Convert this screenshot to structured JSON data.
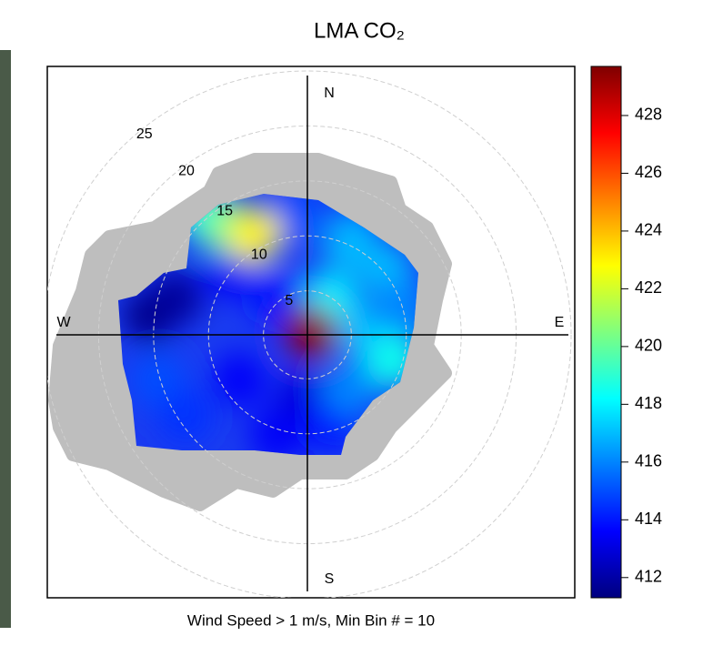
{
  "chart_data": {
    "type": "polar",
    "title": "LMA CO₂",
    "footer": "Wind Speed > 1 m/s, Min Bin # = 10",
    "directions": [
      "N",
      "E",
      "S",
      "W"
    ],
    "rlim": [
      1,
      25
    ],
    "rticks": [
      5,
      10,
      15,
      20,
      25
    ],
    "xlim": [
      -24,
      24
    ],
    "ylim": [
      -24,
      24
    ],
    "zlim": [
      411.3,
      429.7
    ],
    "zticks": [
      412,
      414,
      416,
      418,
      420,
      422,
      424,
      426,
      428
    ],
    "colorscale": [
      "#00007F",
      "#0000FF",
      "#007FFF",
      "#00FFFF",
      "#7FFF7F",
      "#FFFF00",
      "#FF7F00",
      "#FF0000",
      "#7F0000"
    ],
    "samples": {
      "u": [
        -14.7,
        -12.3,
        -13.9,
        -11.4,
        -7.3,
        -6.5,
        -3.1,
        -3.1,
        -0.7,
        1.8,
        3.5,
        5.1,
        5.1,
        1.8,
        3.5,
        6.8,
        8.4,
        7.6,
        -1.5,
        -9.8,
        -8.1,
        -5.2,
        0
      ],
      "v": [
        1.5,
        3.1,
        -4.3,
        -7.6,
        5.6,
        -4.3,
        3.1,
        -9.3,
        -6,
        -8.4,
        -5.1,
        -0.2,
        11.4,
        3.1,
        8.1,
        5.6,
        2.3,
        -2.6,
        10.6,
        10.6,
        9.8,
        8.8,
        0
      ],
      "values": [
        411.5,
        411.8,
        415,
        414.5,
        413.5,
        413.5,
        414,
        413.5,
        413,
        414,
        416,
        417,
        414,
        418,
        417,
        417,
        416,
        418.5,
        415,
        418,
        420,
        423,
        429.5
      ]
    }
  }
}
